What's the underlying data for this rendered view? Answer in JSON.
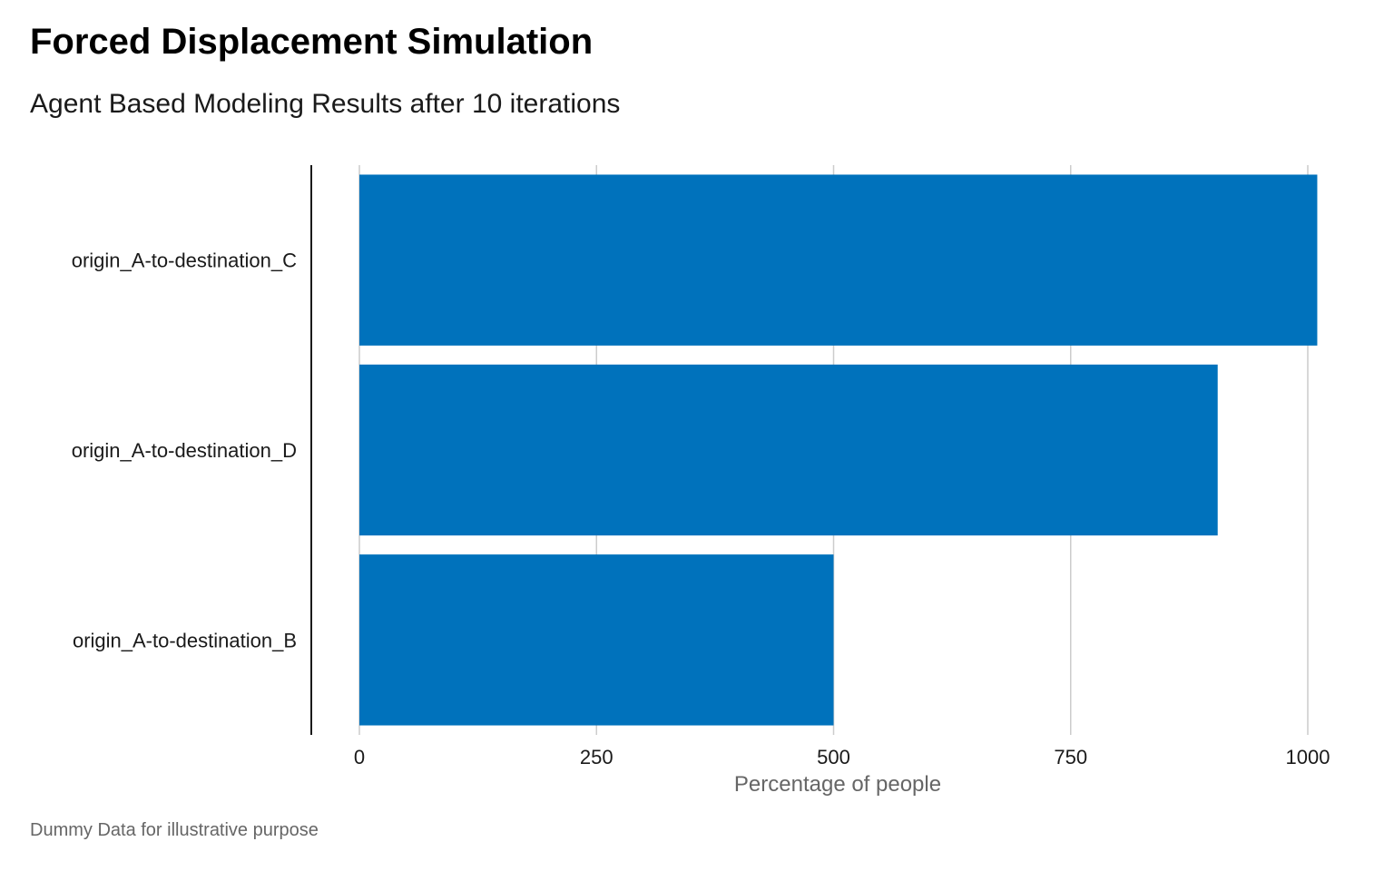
{
  "chart_data": {
    "type": "bar",
    "orientation": "horizontal",
    "title": "Forced Displacement Simulation",
    "subtitle": "Agent Based Modeling Results after 10 iterations",
    "caption": "Dummy Data for illustrative purpose",
    "categories": [
      "origin_A-to-destination_C",
      "origin_A-to-destination_D",
      "origin_A-to-destination_B"
    ],
    "values": [
      1010,
      905,
      500
    ],
    "xlabel": "Percentage of people",
    "ylabel": "",
    "xlim": [
      0,
      1050
    ],
    "xticks": [
      0,
      250,
      500,
      750,
      1000
    ],
    "xtick_labels": [
      "0",
      "250",
      "500",
      "750",
      "1000"
    ],
    "grid": "vertical",
    "bar_color": "#0072BC",
    "gridline_color": "#CCCCCC",
    "axis_line_color": "#1A1A1A"
  }
}
